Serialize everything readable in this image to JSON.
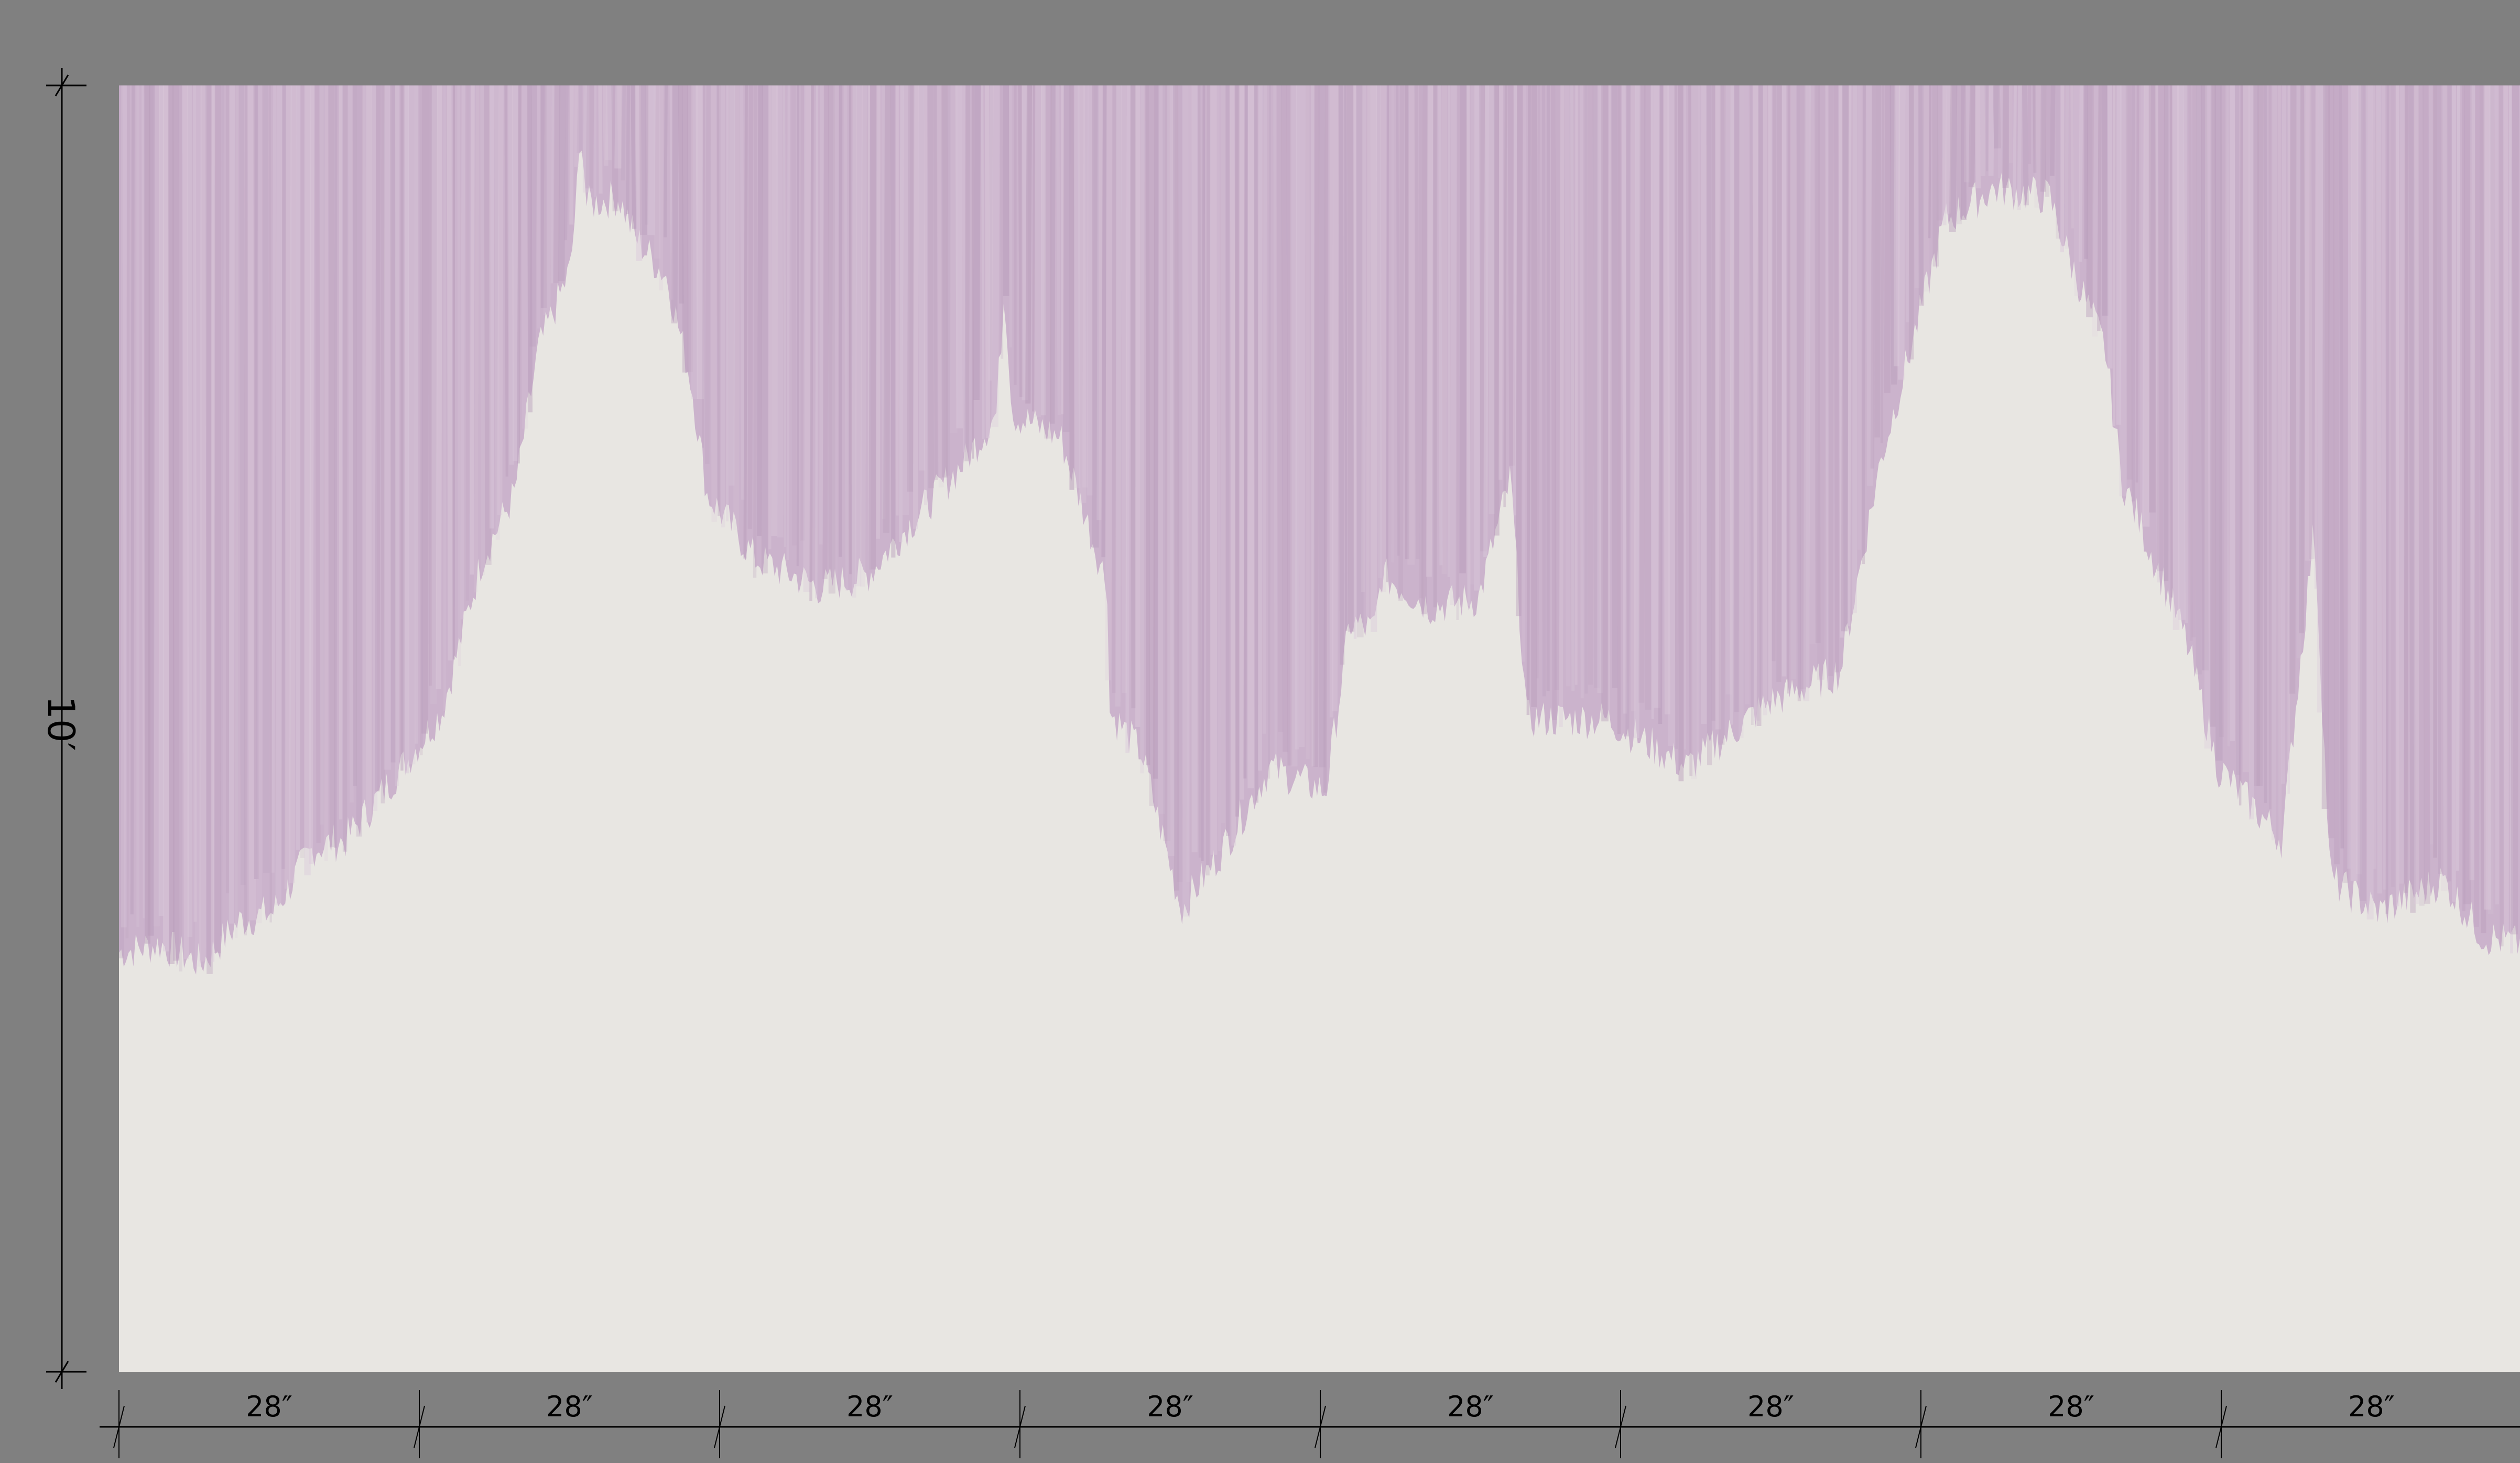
{
  "mural": {
    "background_color": "#e8e6e2",
    "paint_color": "#cbb3cc",
    "frame_color": "#808080"
  },
  "dimensions": {
    "height_label": "10′",
    "panel_labels": [
      "28″",
      "28″",
      "28″",
      "28″",
      "28″",
      "28″",
      "28″",
      "28″"
    ]
  }
}
